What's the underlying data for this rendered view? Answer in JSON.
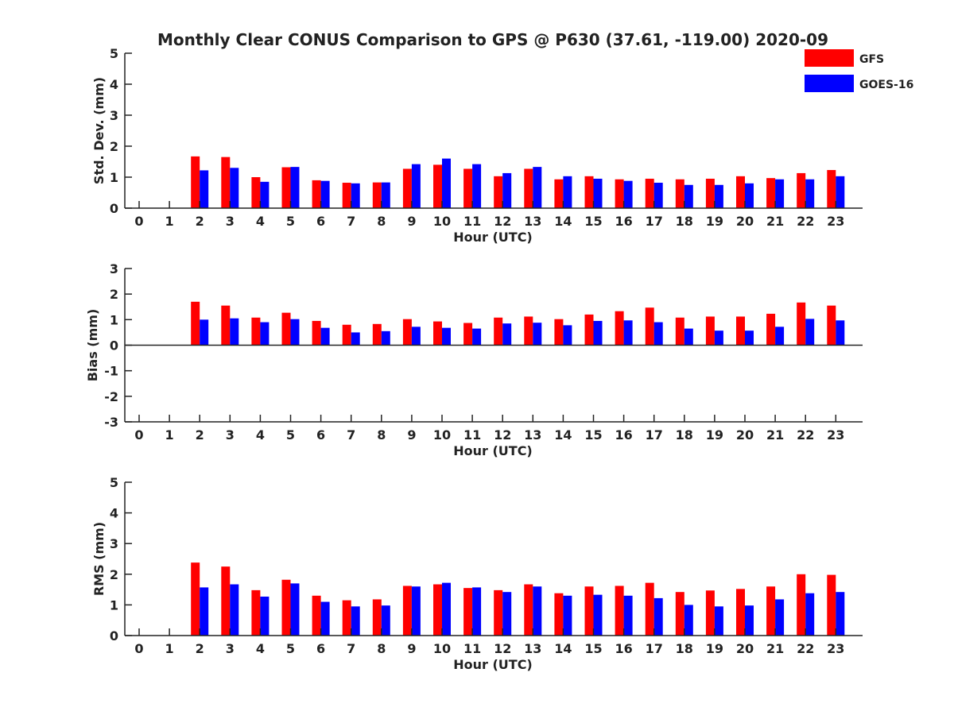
{
  "chart_data": {
    "type": "bar",
    "title": "Monthly Clear CONUS Comparison to GPS @ P630 (37.61, -119.00) 2020-09",
    "legend_position": "top-right",
    "series_info": [
      {
        "name": "GFS",
        "color": "#ff0000"
      },
      {
        "name": "GOES-16",
        "color": "#0000ff"
      }
    ],
    "x": {
      "label": "Hour (UTC)",
      "categories": [
        "0",
        "1",
        "2",
        "3",
        "4",
        "5",
        "6",
        "7",
        "8",
        "9",
        "10",
        "11",
        "12",
        "13",
        "14",
        "15",
        "16",
        "17",
        "18",
        "19",
        "20",
        "21",
        "22",
        "23"
      ]
    },
    "panels": [
      {
        "name": "std-dev",
        "ylabel": "Std. Dev. (mm)",
        "ylim": [
          0,
          5
        ],
        "yticks": [
          "0",
          "1",
          "2",
          "3",
          "4",
          "5"
        ],
        "series": [
          {
            "name": "GFS",
            "values": [
              null,
              null,
              1.67,
              1.65,
              1.0,
              1.32,
              0.9,
              0.82,
              0.83,
              1.27,
              1.4,
              1.27,
              1.03,
              1.27,
              0.93,
              1.03,
              0.93,
              0.95,
              0.93,
              0.95,
              1.03,
              0.97,
              1.13,
              1.23
            ]
          },
          {
            "name": "GOES-16",
            "values": [
              null,
              null,
              1.22,
              1.3,
              0.85,
              1.33,
              0.88,
              0.8,
              0.83,
              1.42,
              1.6,
              1.42,
              1.13,
              1.33,
              1.03,
              0.95,
              0.88,
              0.82,
              0.75,
              0.75,
              0.8,
              0.93,
              0.93,
              1.03
            ]
          }
        ]
      },
      {
        "name": "bias",
        "ylabel": "Bias (mm)",
        "ylim": [
          -3,
          3
        ],
        "yticks": [
          "-3",
          "-2",
          "-1",
          "0",
          "1",
          "2",
          "3"
        ],
        "series": [
          {
            "name": "GFS",
            "values": [
              null,
              null,
              1.7,
              1.55,
              1.08,
              1.27,
              0.95,
              0.8,
              0.83,
              1.02,
              0.93,
              0.87,
              1.08,
              1.12,
              1.02,
              1.2,
              1.33,
              1.47,
              1.08,
              1.12,
              1.12,
              1.23,
              1.67,
              1.55
            ]
          },
          {
            "name": "GOES-16",
            "values": [
              null,
              null,
              1.0,
              1.05,
              0.9,
              1.02,
              0.68,
              0.5,
              0.55,
              0.72,
              0.68,
              0.65,
              0.85,
              0.88,
              0.78,
              0.95,
              0.97,
              0.9,
              0.65,
              0.57,
              0.57,
              0.72,
              1.03,
              0.97
            ]
          }
        ]
      },
      {
        "name": "rms",
        "ylabel": "RMS (mm)",
        "ylim": [
          0,
          5
        ],
        "yticks": [
          "0",
          "1",
          "2",
          "3",
          "4",
          "5"
        ],
        "series": [
          {
            "name": "GFS",
            "values": [
              null,
              null,
              2.38,
              2.25,
              1.48,
              1.82,
              1.3,
              1.15,
              1.18,
              1.62,
              1.67,
              1.55,
              1.48,
              1.67,
              1.38,
              1.6,
              1.62,
              1.72,
              1.42,
              1.47,
              1.52,
              1.6,
              2.0,
              1.98
            ]
          },
          {
            "name": "GOES-16",
            "values": [
              null,
              null,
              1.57,
              1.67,
              1.27,
              1.7,
              1.1,
              0.95,
              0.98,
              1.6,
              1.72,
              1.57,
              1.42,
              1.6,
              1.3,
              1.33,
              1.3,
              1.22,
              1.0,
              0.95,
              0.98,
              1.18,
              1.38,
              1.42
            ]
          }
        ]
      }
    ]
  }
}
